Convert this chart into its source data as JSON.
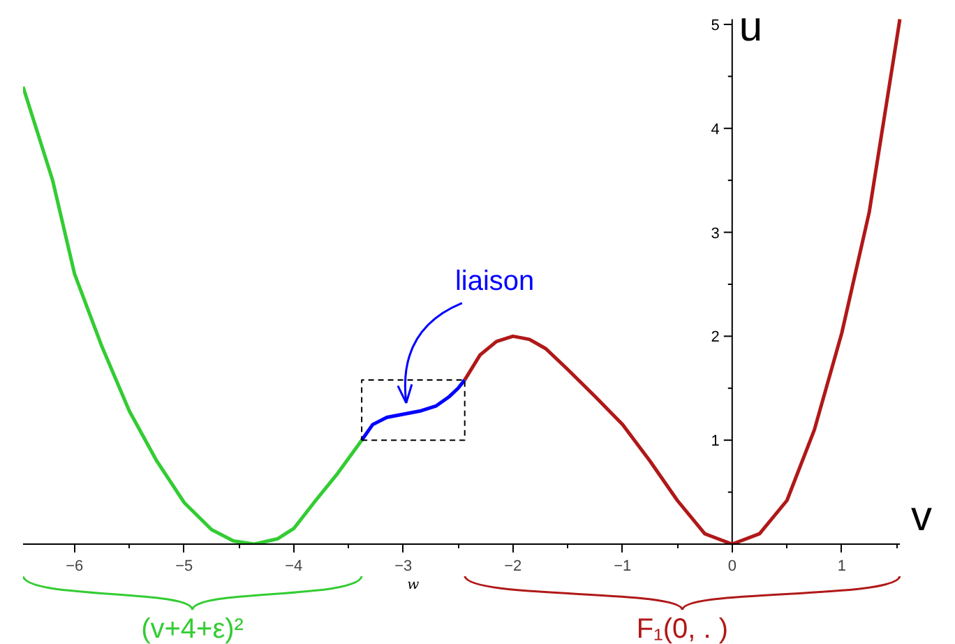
{
  "chart_data": {
    "type": "line",
    "xlabel": "v",
    "ylabel": "u",
    "xlim": [
      -6.47,
      1.53
    ],
    "ylim": [
      0,
      5.05
    ],
    "xticks": [
      -6,
      -5,
      -4,
      -3,
      -2,
      -1,
      0,
      1
    ],
    "yticks": [
      1,
      2,
      3,
      4,
      5
    ],
    "series": [
      {
        "name": "(v+4+ε)²",
        "color": "#33cc33",
        "x": [
          -6.47,
          -6.2,
          -6.0,
          -5.75,
          -5.5,
          -5.25,
          -5.0,
          -4.75,
          -4.55,
          -4.36,
          -4.15,
          -4.0,
          -3.8,
          -3.6,
          -3.38
        ],
        "values": [
          4.4,
          3.5,
          2.6,
          1.9,
          1.28,
          0.8,
          0.4,
          0.14,
          0.03,
          0,
          0.05,
          0.15,
          0.42,
          0.68,
          1.0
        ]
      },
      {
        "name": "liaison",
        "color": "#0000ff",
        "x": [
          -3.38,
          -3.28,
          -3.15,
          -3.0,
          -2.85,
          -2.7,
          -2.58,
          -2.5,
          -2.44
        ],
        "values": [
          1.0,
          1.15,
          1.22,
          1.25,
          1.28,
          1.33,
          1.42,
          1.5,
          1.58
        ]
      },
      {
        "name": "F₁(0, . )",
        "color": "#b01818",
        "x": [
          -2.44,
          -2.3,
          -2.15,
          -2.0,
          -1.85,
          -1.7,
          -1.5,
          -1.25,
          -1.0,
          -0.75,
          -0.5,
          -0.25,
          0.0,
          0.25,
          0.5,
          0.75,
          1.0,
          1.25,
          1.5,
          1.53
        ],
        "values": [
          1.58,
          1.82,
          1.95,
          2.0,
          1.97,
          1.88,
          1.68,
          1.42,
          1.15,
          0.8,
          0.42,
          0.1,
          0,
          0.1,
          0.42,
          1.1,
          2.03,
          3.19,
          4.85,
          5.05
        ]
      }
    ],
    "annotations": [
      "w"
    ]
  }
}
